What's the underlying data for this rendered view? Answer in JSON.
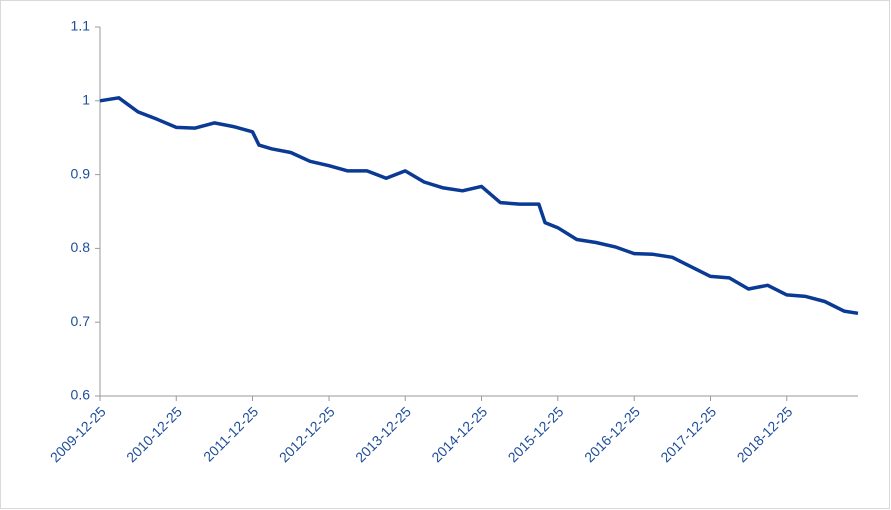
{
  "chart_data": {
    "type": "line",
    "x": [
      "2009-12-25",
      "2010-03-25",
      "2010-06-25",
      "2010-09-25",
      "2010-12-25",
      "2011-03-25",
      "2011-06-25",
      "2011-09-25",
      "2011-12-25",
      "2012-01-25",
      "2012-03-25",
      "2012-06-25",
      "2012-09-25",
      "2012-12-25",
      "2013-03-25",
      "2013-06-25",
      "2013-09-25",
      "2013-12-25",
      "2014-03-25",
      "2014-06-25",
      "2014-09-25",
      "2014-12-25",
      "2015-03-25",
      "2015-06-25",
      "2015-09-25",
      "2015-10-25",
      "2015-12-25",
      "2016-03-25",
      "2016-06-25",
      "2016-09-25",
      "2016-12-25",
      "2017-03-25",
      "2017-06-25",
      "2017-09-25",
      "2017-12-25",
      "2018-03-25",
      "2018-06-25",
      "2018-09-25",
      "2018-12-25",
      "2019-03-25",
      "2019-06-25",
      "2019-09-25",
      "2019-12-01"
    ],
    "values": [
      1.0,
      1.004,
      0.985,
      0.975,
      0.964,
      0.963,
      0.97,
      0.965,
      0.958,
      0.94,
      0.935,
      0.93,
      0.918,
      0.912,
      0.905,
      0.905,
      0.895,
      0.905,
      0.89,
      0.882,
      0.878,
      0.884,
      0.862,
      0.86,
      0.86,
      0.835,
      0.828,
      0.812,
      0.808,
      0.802,
      0.793,
      0.792,
      0.788,
      0.775,
      0.762,
      0.76,
      0.745,
      0.75,
      0.737,
      0.735,
      0.728,
      0.715,
      0.712
    ],
    "color": "#0a3a94",
    "xlim": [
      "2009-12-25",
      "2019-12-01"
    ],
    "xticks": [
      "2009-12-25",
      "2010-12-25",
      "2011-12-25",
      "2012-12-25",
      "2013-12-25",
      "2014-12-25",
      "2015-12-25",
      "2016-12-25",
      "2017-12-25",
      "2018-12-25"
    ],
    "ylim": [
      0.6,
      1.1
    ],
    "yticks": [
      0.6,
      0.7,
      0.8,
      0.9,
      1,
      1.1
    ]
  }
}
